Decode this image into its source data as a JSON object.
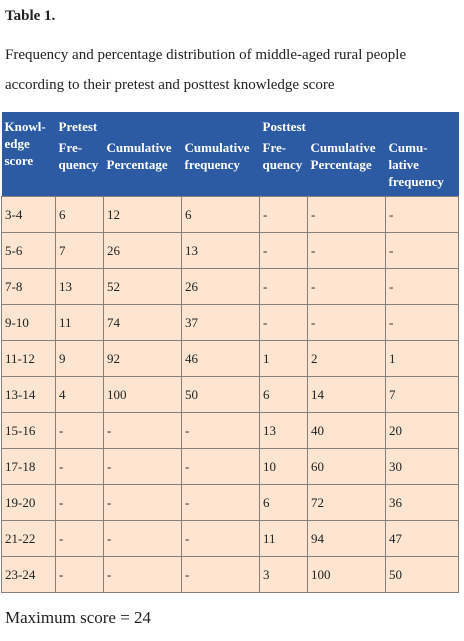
{
  "title": "Table 1.",
  "caption": "Frequency and percentage distribution of middle-aged rural people according to their pretest and posttest knowledge score",
  "table": {
    "header": {
      "score": "Knowl-edge score",
      "pretest": "Pretest",
      "posttest": "Posttest",
      "columns": [
        "Fre-quency",
        "Cumulative Percentage",
        "Cumulative frequency",
        "Fre-quency",
        "Cumulative Percentage",
        "Cumu-lative frequency"
      ]
    },
    "rows": [
      [
        "3-4",
        6,
        12,
        6,
        "-",
        "-",
        "-"
      ],
      [
        "5-6",
        7,
        26,
        13,
        "-",
        "-",
        "-"
      ],
      [
        "7-8",
        13,
        52,
        26,
        "-",
        "-",
        "-"
      ],
      [
        "9-10",
        11,
        74,
        37,
        "-",
        "-",
        "-"
      ],
      [
        "11-12",
        9,
        92,
        46,
        1,
        2,
        1
      ],
      [
        "13-14",
        4,
        100,
        50,
        6,
        14,
        7
      ],
      [
        "15-16",
        "-",
        "-",
        "-",
        13,
        40,
        20
      ],
      [
        "17-18",
        "-",
        "-",
        "-",
        10,
        60,
        30
      ],
      [
        "19-20",
        "-",
        "-",
        "-",
        6,
        72,
        36
      ],
      [
        "21-22",
        "-",
        "-",
        "-",
        11,
        94,
        47
      ],
      [
        "23-24",
        "-",
        "-",
        "-",
        3,
        100,
        50
      ]
    ]
  },
  "footnote": "Maximum score = 24"
}
